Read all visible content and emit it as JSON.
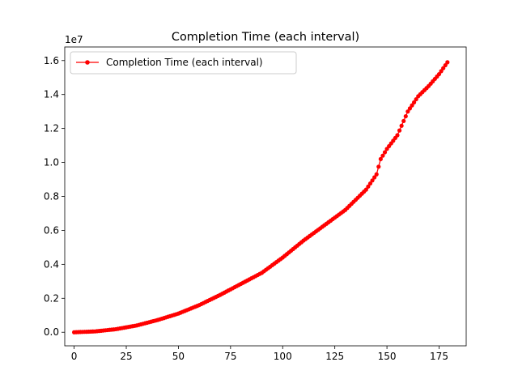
{
  "chart_data": {
    "type": "line",
    "title": "Completion Time  (each interval)",
    "xlabel": "",
    "ylabel": "",
    "y_offset_label": "1e7",
    "xlim": [
      -4.5,
      188
    ],
    "ylim": [
      -0.08,
      1.68
    ],
    "x_ticks": [
      0,
      25,
      50,
      75,
      100,
      125,
      150,
      175
    ],
    "x_tick_labels": [
      "0",
      "25",
      "50",
      "75",
      "100",
      "125",
      "150",
      "175"
    ],
    "y_ticks": [
      0.0,
      0.2,
      0.4,
      0.6,
      0.8,
      1.0,
      1.2,
      1.4,
      1.6
    ],
    "y_tick_labels": [
      "0.0",
      "0.2",
      "0.4",
      "0.6",
      "0.8",
      "1.0",
      "1.2",
      "1.4",
      "1.6"
    ],
    "grid": false,
    "legend_position": "top-left",
    "series": [
      {
        "name": "Completion Time  (each interval)",
        "color": "#ff0000",
        "marker": "circle",
        "anchors_x": [
          0,
          10,
          20,
          30,
          40,
          50,
          60,
          70,
          80,
          90,
          100,
          110,
          120,
          130,
          140,
          145,
          147,
          150,
          155,
          160,
          165,
          170,
          175,
          179
        ],
        "anchors_y": [
          0.0,
          0.005,
          0.018,
          0.04,
          0.072,
          0.11,
          0.16,
          0.22,
          0.285,
          0.35,
          0.44,
          0.54,
          0.63,
          0.72,
          0.84,
          0.93,
          1.02,
          1.08,
          1.16,
          1.3,
          1.39,
          1.45,
          1.52,
          1.59
        ]
      }
    ]
  }
}
